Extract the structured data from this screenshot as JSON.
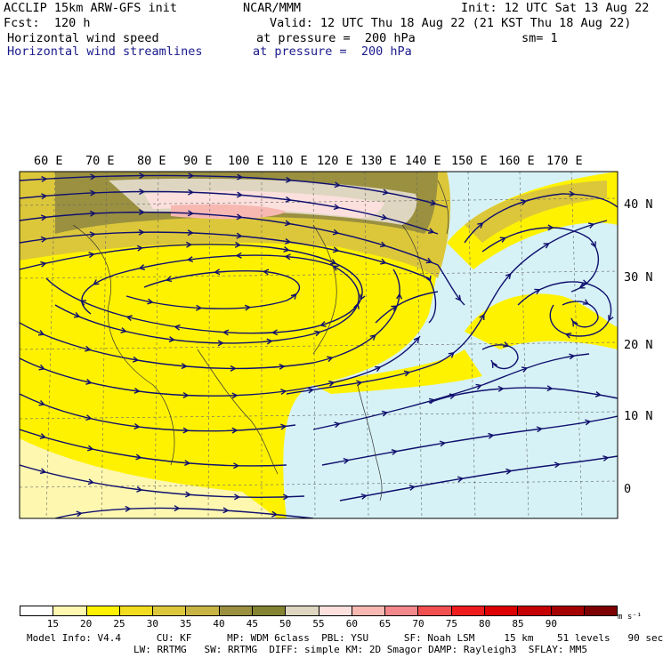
{
  "header": {
    "model": "ACCLIP 15km ARW-GFS init",
    "center": "NCAR/MMM",
    "init": "Init: 12 UTC Sat 13 Aug 22",
    "fcst": "Fcst:  120 h",
    "valid": "Valid: 12 UTC Thu 18 Aug 22 (21 KST Thu 18 Aug 22)",
    "field1": "Horizontal wind speed",
    "field1_level": "at pressure =  200 hPa",
    "smoothing": "sm= 1",
    "field2": "Horizontal wind streamlines",
    "field2_level": "at pressure =  200 hPa"
  },
  "map": {
    "lon_labels": [
      "60 E",
      "70 E",
      "80 E",
      "90 E",
      "100 E",
      "110 E",
      "120 E",
      "130 E",
      "140 E",
      "150 E",
      "160 E",
      "170 E"
    ],
    "lat_labels": [
      "40 N",
      "30 N",
      "20 N",
      "10 N",
      "0"
    ]
  },
  "colorbar": {
    "labels": [
      "15",
      "20",
      "25",
      "30",
      "35",
      "40",
      "45",
      "50",
      "55",
      "60",
      "65",
      "70",
      "75",
      "80",
      "85",
      "90"
    ],
    "units": "m s⁻¹",
    "colors": [
      "#ffffff",
      "#fdf7b0",
      "#fff200",
      "#f2dc20",
      "#dcc73a",
      "#c8b444",
      "#9a9040",
      "#838332",
      "#ded6c0",
      "#fbe0dd",
      "#f7b8b2",
      "#f2878c",
      "#f25050",
      "#ee1c1c",
      "#dd0000",
      "#c40000",
      "#a50000",
      "#7d0000"
    ]
  },
  "footer": {
    "line1": "Model Info: V4.4      CU: KF      MP: WDM 6class  PBL: YSU      SF: Noah LSM     15 km    51 levels   90 sec",
    "line2": "LW: RRTMG   SW: RRTMG  DIFF: simple KM: 2D Smagor DAMP: Rayleigh3  SFLAY: MM5"
  }
}
